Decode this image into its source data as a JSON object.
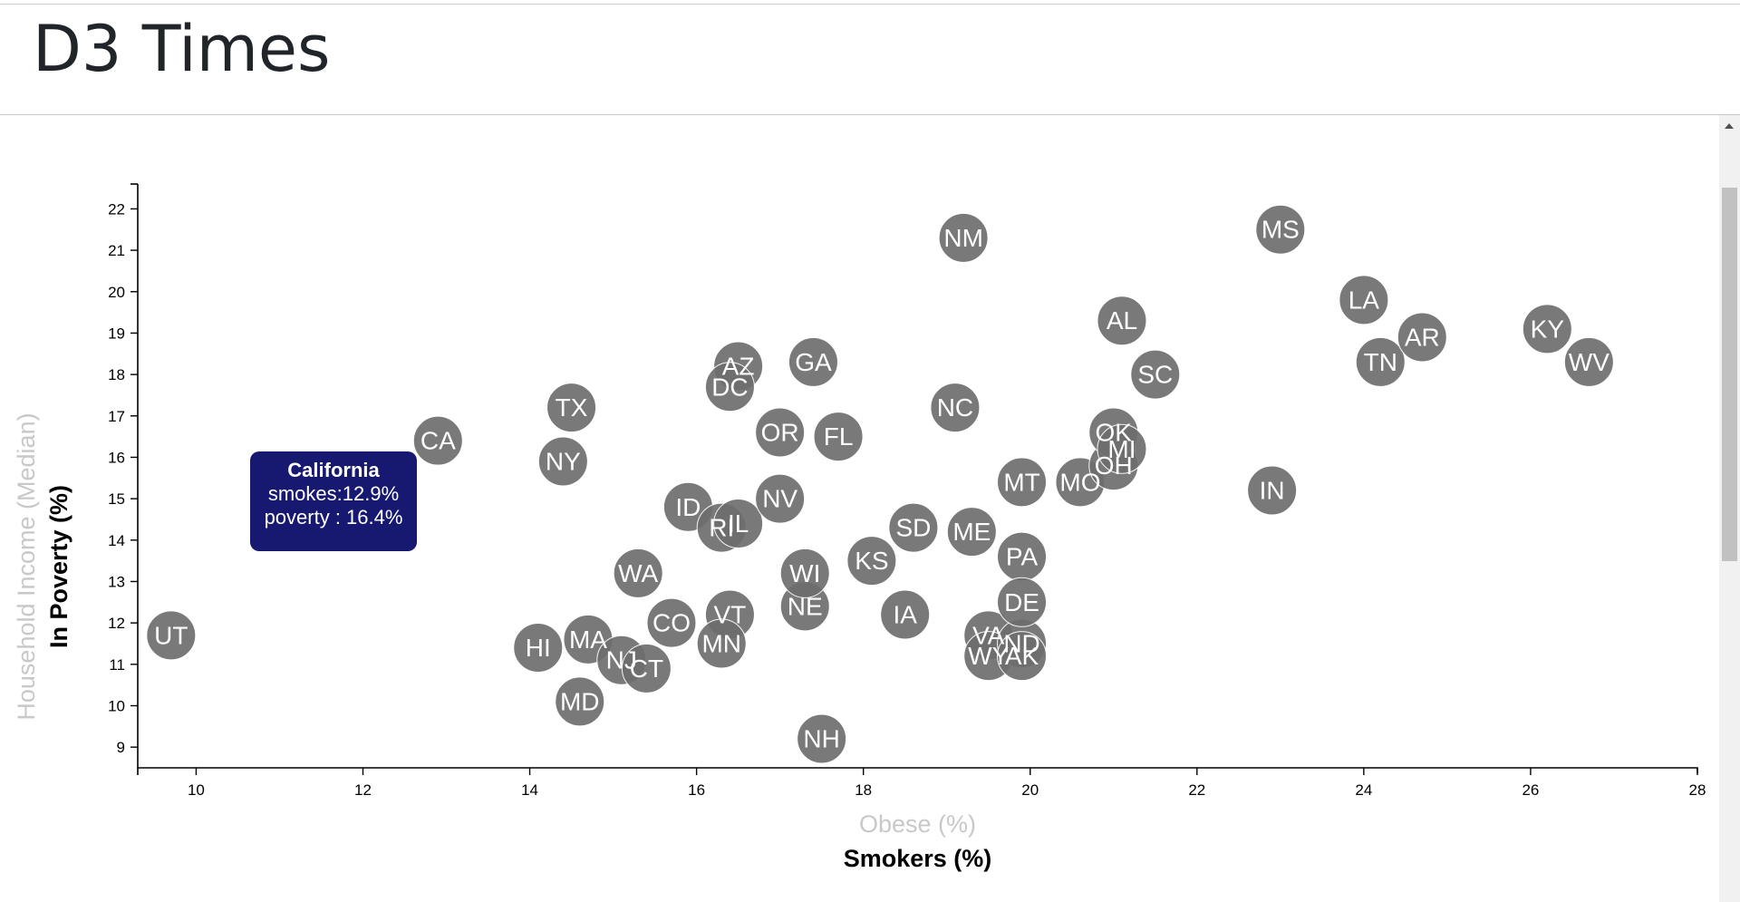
{
  "page": {
    "title": "D3 Times"
  },
  "tooltip": {
    "name": "California",
    "line1": "smokes:12.9%",
    "line2": "poverty : 16.4%"
  },
  "colors": {
    "circle": "#6e6e6e",
    "circle_text": "#ffffff",
    "tooltip_bg": "#171870",
    "inactive_label": "#c8c8c8"
  },
  "chart_data": {
    "type": "scatter",
    "title": "",
    "x_labels": [
      {
        "text": "Obese (%)",
        "active": false
      },
      {
        "text": "Smokers (%)",
        "active": true
      }
    ],
    "y_labels": [
      {
        "text": "Household Income (Median)",
        "active": false
      },
      {
        "text": "In Poverty (%)",
        "active": true
      }
    ],
    "xlim": [
      9.3,
      28
    ],
    "ylim": [
      8.5,
      22.6
    ],
    "x_ticks": [
      10,
      12,
      14,
      16,
      18,
      20,
      22,
      24,
      26,
      28
    ],
    "y_ticks": [
      9,
      10,
      11,
      12,
      13,
      14,
      15,
      16,
      17,
      18,
      19,
      20,
      21,
      22
    ],
    "grid": false,
    "points": [
      {
        "label": "UT",
        "x": 9.7,
        "y": 11.7
      },
      {
        "label": "CA",
        "x": 12.9,
        "y": 16.4
      },
      {
        "label": "TX",
        "x": 14.5,
        "y": 17.2
      },
      {
        "label": "NY",
        "x": 14.4,
        "y": 15.9
      },
      {
        "label": "HI",
        "x": 14.1,
        "y": 11.4
      },
      {
        "label": "MA",
        "x": 14.7,
        "y": 11.6
      },
      {
        "label": "MD",
        "x": 14.6,
        "y": 10.1
      },
      {
        "label": "NJ",
        "x": 15.1,
        "y": 11.1
      },
      {
        "label": "CT",
        "x": 15.4,
        "y": 10.9
      },
      {
        "label": "WA",
        "x": 15.3,
        "y": 13.2
      },
      {
        "label": "CO",
        "x": 15.7,
        "y": 12.0
      },
      {
        "label": "ID",
        "x": 15.9,
        "y": 14.8
      },
      {
        "label": "RI",
        "x": 16.3,
        "y": 14.3
      },
      {
        "label": "IL",
        "x": 16.5,
        "y": 14.4
      },
      {
        "label": "VT",
        "x": 16.4,
        "y": 12.2
      },
      {
        "label": "MN",
        "x": 16.3,
        "y": 11.5
      },
      {
        "label": "AZ",
        "x": 16.5,
        "y": 18.2
      },
      {
        "label": "DC",
        "x": 16.4,
        "y": 17.7
      },
      {
        "label": "OR",
        "x": 17.0,
        "y": 16.6
      },
      {
        "label": "NV",
        "x": 17.0,
        "y": 15.0
      },
      {
        "label": "GA",
        "x": 17.4,
        "y": 18.3
      },
      {
        "label": "FL",
        "x": 17.7,
        "y": 16.5
      },
      {
        "label": "NE",
        "x": 17.3,
        "y": 12.4
      },
      {
        "label": "WI",
        "x": 17.3,
        "y": 13.2
      },
      {
        "label": "NH",
        "x": 17.5,
        "y": 9.2
      },
      {
        "label": "KS",
        "x": 18.1,
        "y": 13.5
      },
      {
        "label": "SD",
        "x": 18.6,
        "y": 14.3
      },
      {
        "label": "IA",
        "x": 18.5,
        "y": 12.2
      },
      {
        "label": "NM",
        "x": 19.2,
        "y": 21.3
      },
      {
        "label": "NC",
        "x": 19.1,
        "y": 17.2
      },
      {
        "label": "ME",
        "x": 19.3,
        "y": 14.2
      },
      {
        "label": "VA",
        "x": 19.5,
        "y": 11.7
      },
      {
        "label": "WY",
        "x": 19.5,
        "y": 11.2
      },
      {
        "label": "ND",
        "x": 19.9,
        "y": 11.5
      },
      {
        "label": "AK",
        "x": 19.9,
        "y": 11.2
      },
      {
        "label": "MT",
        "x": 19.9,
        "y": 15.4
      },
      {
        "label": "PA",
        "x": 19.9,
        "y": 13.6
      },
      {
        "label": "DE",
        "x": 19.9,
        "y": 12.5
      },
      {
        "label": "MO",
        "x": 20.6,
        "y": 15.4
      },
      {
        "label": "OH",
        "x": 21.0,
        "y": 15.8
      },
      {
        "label": "OK",
        "x": 21.0,
        "y": 16.6
      },
      {
        "label": "MI",
        "x": 21.1,
        "y": 16.2
      },
      {
        "label": "AL",
        "x": 21.1,
        "y": 19.3
      },
      {
        "label": "SC",
        "x": 21.5,
        "y": 18.0
      },
      {
        "label": "IN",
        "x": 22.9,
        "y": 15.2
      },
      {
        "label": "MS",
        "x": 23.0,
        "y": 21.5
      },
      {
        "label": "LA",
        "x": 24.0,
        "y": 19.8
      },
      {
        "label": "TN",
        "x": 24.2,
        "y": 18.3
      },
      {
        "label": "AR",
        "x": 24.7,
        "y": 18.9
      },
      {
        "label": "KY",
        "x": 26.2,
        "y": 19.1
      },
      {
        "label": "WV",
        "x": 26.7,
        "y": 18.3
      }
    ]
  }
}
